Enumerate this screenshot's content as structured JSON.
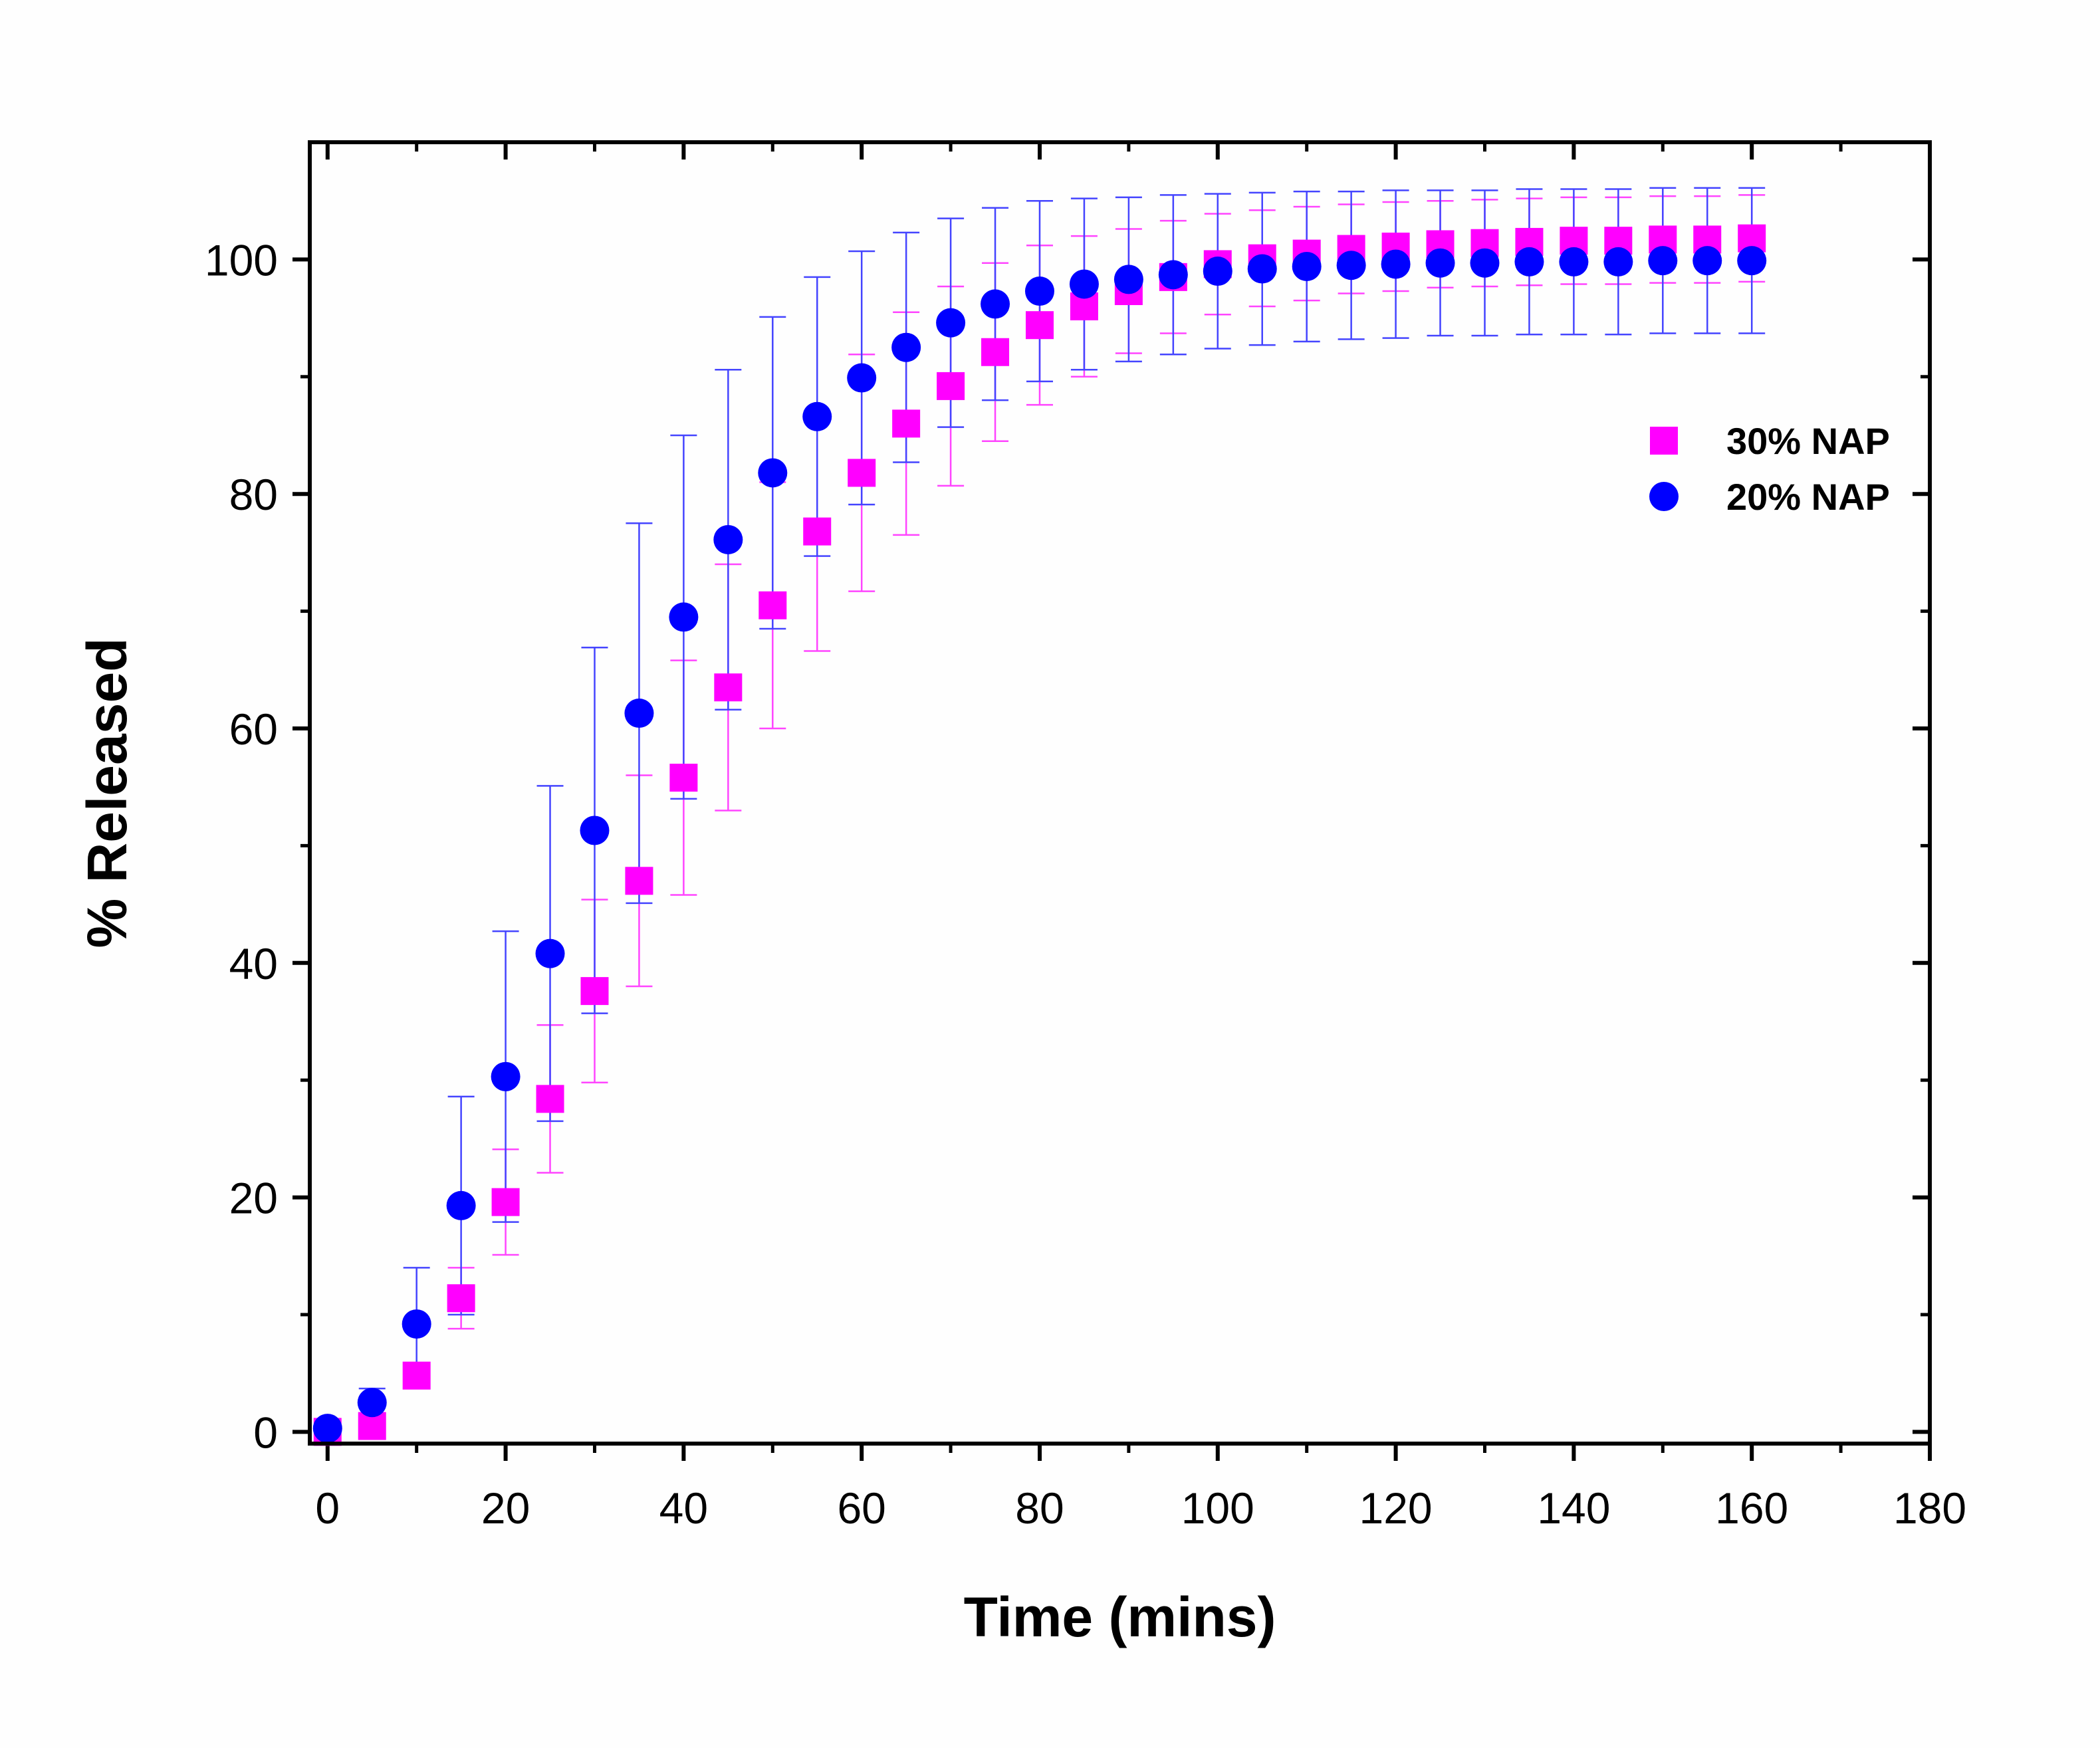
{
  "chart_data": {
    "type": "scatter",
    "title": "",
    "xlabel": "Time (mins)",
    "ylabel": "% Released",
    "xlim": [
      -2,
      180
    ],
    "ylim": [
      -1,
      110
    ],
    "xticks": [
      0,
      20,
      40,
      60,
      80,
      100,
      120,
      140,
      160,
      180
    ],
    "yticks": [
      0,
      20,
      40,
      60,
      80,
      100
    ],
    "x_tick_labels": [
      "0",
      "20",
      "40",
      "60",
      "80",
      "100",
      "120",
      "140",
      "160",
      "180"
    ],
    "y_tick_labels": [
      "0",
      "20",
      "40",
      "60",
      "80",
      "100"
    ],
    "grid": false,
    "legend_position": "right",
    "x": [
      0,
      5,
      10,
      15,
      20,
      25,
      30,
      35,
      40,
      45,
      50,
      55,
      60,
      65,
      70,
      75,
      80,
      85,
      90,
      95,
      100,
      105,
      110,
      115,
      120,
      125,
      130,
      135,
      140,
      145,
      150,
      155,
      160
    ],
    "series": [
      {
        "name": "30% NAP",
        "marker": "square",
        "color": "#ff00ff",
        "values": [
          0.0,
          0.5,
          4.8,
          11.4,
          19.6,
          28.4,
          37.6,
          47.0,
          55.8,
          63.5,
          70.5,
          76.8,
          81.8,
          86.0,
          89.2,
          92.1,
          94.4,
          96.0,
          97.3,
          98.5,
          99.6,
          100.1,
          100.5,
          100.9,
          101.1,
          101.3,
          101.4,
          101.5,
          101.6,
          101.6,
          101.7,
          101.7,
          101.8
        ],
        "errors": [
          0.3,
          0.5,
          0.8,
          2.6,
          4.5,
          6.3,
          7.8,
          9.0,
          10.0,
          10.5,
          10.5,
          10.2,
          10.1,
          9.5,
          8.5,
          7.6,
          6.8,
          6.0,
          5.3,
          4.8,
          4.3,
          4.1,
          4.0,
          3.8,
          3.8,
          3.7,
          3.7,
          3.7,
          3.7,
          3.7,
          3.7,
          3.7,
          3.7
        ]
      },
      {
        "name": "20% NAP",
        "marker": "circle",
        "color": "#0000ff",
        "values": [
          0.3,
          2.5,
          9.2,
          19.3,
          30.3,
          40.8,
          51.3,
          61.3,
          69.5,
          76.1,
          81.8,
          86.6,
          89.9,
          92.5,
          94.6,
          96.2,
          97.3,
          97.9,
          98.3,
          98.7,
          99.0,
          99.2,
          99.4,
          99.5,
          99.6,
          99.7,
          99.7,
          99.8,
          99.8,
          99.8,
          99.9,
          99.9,
          99.9
        ],
        "errors": [
          0.3,
          1.2,
          4.8,
          9.3,
          12.4,
          14.3,
          15.6,
          16.2,
          15.5,
          14.5,
          13.3,
          11.9,
          10.8,
          9.8,
          8.9,
          8.2,
          7.7,
          7.3,
          7.0,
          6.8,
          6.6,
          6.5,
          6.4,
          6.3,
          6.3,
          6.2,
          6.2,
          6.2,
          6.2,
          6.2,
          6.2,
          6.2,
          6.2
        ]
      }
    ]
  }
}
